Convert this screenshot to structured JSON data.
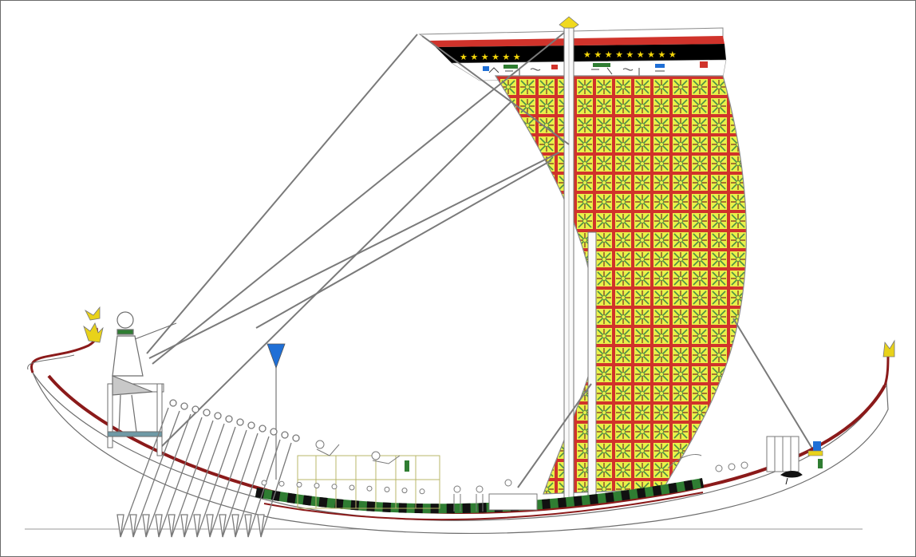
{
  "image": {
    "kind": "line-drawing-reconstruction",
    "subject": "ancient-egyptian-sailing-ship",
    "text": []
  },
  "colors": {
    "outline": "#6e6e6e",
    "hull_red": "#8b1a1a",
    "hull_black": "#111111",
    "hull_green": "#2f7d32",
    "sail_red": "#d0332b",
    "sail_yellow": "#e9f24a",
    "sail_green": "#4e8f45",
    "banner_black": "#000000",
    "star_yellow": "#f5d70a",
    "pennant_blue": "#1f6fd6",
    "lotus_yellow": "#e8d21a",
    "cabin_yellow": "#e6e08a"
  },
  "icons": [
    "lotus-finial-icon",
    "pennant-flag-icon",
    "helmsman-figure-icon",
    "eye-of-horus-icon",
    "oars-icon",
    "cabin-icon"
  ]
}
